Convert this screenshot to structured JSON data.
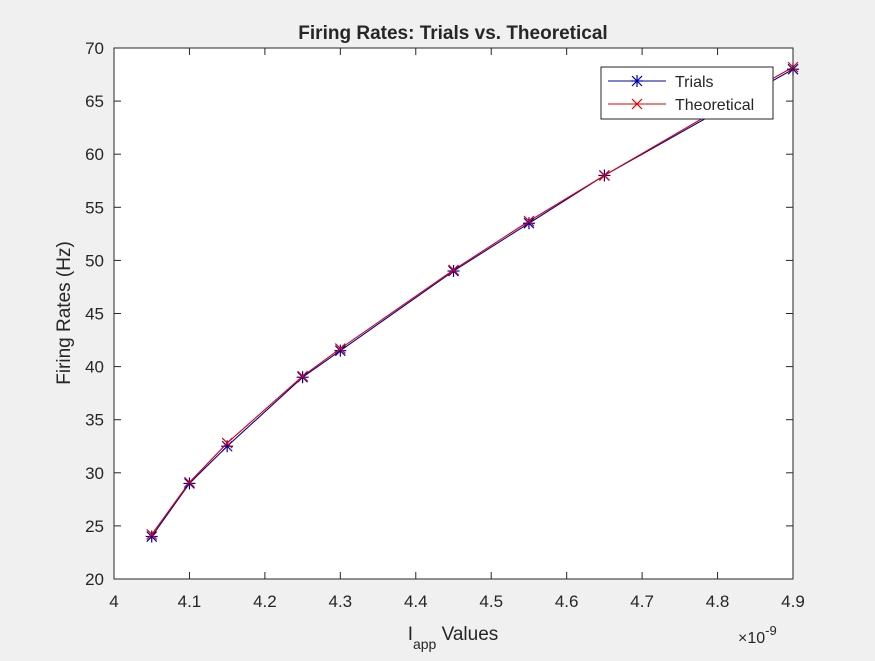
{
  "chart_data": {
    "type": "line",
    "title": "Firing Rates: Trials vs. Theoretical",
    "xlabel": {
      "main": "I",
      "sub": "app",
      "rest": " Values"
    },
    "ylabel": "Firing Rates (Hz)",
    "xlim": [
      4.0,
      4.9
    ],
    "ylim": [
      20,
      70
    ],
    "x_ticks": [
      "4",
      "4.1",
      "4.2",
      "4.3",
      "4.4",
      "4.5",
      "4.6",
      "4.7",
      "4.8",
      "4.9"
    ],
    "y_ticks": [
      "20",
      "25",
      "30",
      "35",
      "40",
      "45",
      "50",
      "55",
      "60",
      "65",
      "70"
    ],
    "x_exponent": {
      "base": "×10",
      "power": "-9"
    },
    "legend_position": "top-right",
    "grid": false,
    "series": [
      {
        "name": "Trials",
        "color": "#0000aa",
        "marker": "asterisk",
        "x": [
          4.05,
          4.1,
          4.15,
          4.25,
          4.3,
          4.45,
          4.55,
          4.65,
          4.8,
          4.9
        ],
        "y": [
          24.0,
          29.0,
          32.5,
          39.0,
          41.5,
          49.0,
          53.5,
          58.0,
          64.0,
          68.0
        ]
      },
      {
        "name": "Theoretical",
        "color": "#dd0000",
        "marker": "x",
        "x": [
          4.05,
          4.1,
          4.15,
          4.25,
          4.3,
          4.45,
          4.55,
          4.65,
          4.8,
          4.9
        ],
        "y": [
          24.2,
          29.1,
          32.8,
          39.1,
          41.7,
          49.1,
          53.7,
          58.0,
          64.2,
          68.2
        ]
      }
    ]
  }
}
